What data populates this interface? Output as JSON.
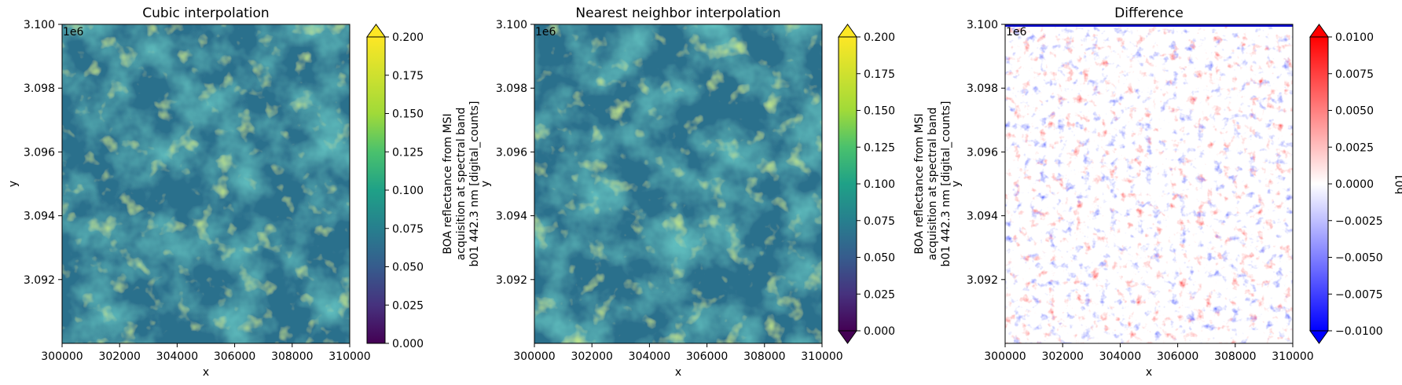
{
  "chart_data": [
    {
      "type": "heatmap",
      "title": "Cubic interpolation",
      "xlabel": "x",
      "ylabel": "y",
      "offset_label": "1e6",
      "xlim": [
        300000,
        310000
      ],
      "ylim": [
        3090000,
        3100000
      ],
      "x_ticks": [
        "300000",
        "302000",
        "304000",
        "306000",
        "308000",
        "310000"
      ],
      "y_ticks": [
        "3.092",
        "3.094",
        "3.096",
        "3.098",
        "3.100"
      ],
      "colormap": "viridis",
      "colorbar": {
        "label_lines": [
          "BOA reflectance from MSI",
          "acquisition at spectral band",
          "b01 442.3 nm [digital_counts]"
        ],
        "range": [
          0.0,
          0.2
        ],
        "ticks": [
          "0.000",
          "0.025",
          "0.050",
          "0.075",
          "0.100",
          "0.125",
          "0.150",
          "0.175",
          "0.200"
        ],
        "extend": "max"
      }
    },
    {
      "type": "heatmap",
      "title": "Nearest neighbor interpolation",
      "xlabel": "x",
      "ylabel": "y",
      "offset_label": "1e6",
      "xlim": [
        300000,
        310000
      ],
      "ylim": [
        3090000,
        3100000
      ],
      "x_ticks": [
        "300000",
        "302000",
        "304000",
        "306000",
        "308000",
        "310000"
      ],
      "y_ticks": [
        "3.092",
        "3.094",
        "3.096",
        "3.098",
        "3.100"
      ],
      "colormap": "viridis",
      "colorbar": {
        "label_lines": [
          "BOA reflectance from MSI",
          "acquisition at spectral band",
          "b01 442.3 nm [digital_counts]"
        ],
        "range": [
          0.0,
          0.2
        ],
        "ticks": [
          "0.000",
          "0.025",
          "0.050",
          "0.075",
          "0.100",
          "0.125",
          "0.150",
          "0.175",
          "0.200"
        ],
        "extend": "both"
      }
    },
    {
      "type": "heatmap",
      "title": "Difference",
      "xlabel": "x",
      "ylabel": "y",
      "offset_label": "1e6",
      "xlim": [
        300000,
        310000
      ],
      "ylim": [
        3090000,
        3100000
      ],
      "x_ticks": [
        "300000",
        "302000",
        "304000",
        "306000",
        "308000",
        "310000"
      ],
      "y_ticks": [
        "3.092",
        "3.094",
        "3.096",
        "3.098",
        "3.100"
      ],
      "colormap": "bwr",
      "colorbar": {
        "label_lines": [
          "b01"
        ],
        "range": [
          -0.01,
          0.01
        ],
        "ticks": [
          "−0.0100",
          "−0.0075",
          "−0.0050",
          "−0.0025",
          "0.0000",
          "0.0025",
          "0.0050",
          "0.0075",
          "0.0100"
        ],
        "extend": "both"
      }
    }
  ]
}
